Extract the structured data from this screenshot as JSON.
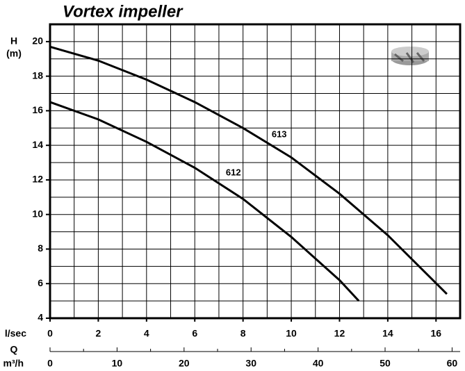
{
  "chart_data": {
    "type": "line",
    "title": "Vortex impeller",
    "ylabel": [
      "H",
      "(m)"
    ],
    "xlabel": "l/sec",
    "x2label": [
      "Q",
      "m³/h"
    ],
    "xlim": [
      0,
      17
    ],
    "ylim": [
      4,
      21
    ],
    "x2lim": [
      0,
      61.2
    ],
    "xticks": [
      0,
      2,
      4,
      6,
      8,
      10,
      12,
      14,
      16
    ],
    "yticks": [
      4,
      6,
      8,
      10,
      12,
      14,
      16,
      18,
      20
    ],
    "x2ticks": [
      0,
      10,
      20,
      30,
      40,
      50,
      60
    ],
    "x2minor": [
      5,
      15,
      25,
      35,
      45,
      55
    ],
    "xgrid": [
      1,
      2,
      3,
      4,
      5,
      6,
      7,
      8,
      9,
      10,
      11,
      12,
      13,
      14,
      15,
      16
    ],
    "ygrid": [
      5,
      6,
      7,
      8,
      9,
      10,
      11,
      12,
      13,
      14,
      15,
      16,
      17,
      18,
      19,
      20
    ],
    "grid": true,
    "series": [
      {
        "name": "613",
        "color": "#000000",
        "x": [
          0,
          2,
          4,
          6,
          8,
          10,
          12,
          14,
          16.45
        ],
        "values": [
          19.7,
          18.9,
          17.8,
          16.5,
          15.0,
          13.3,
          11.2,
          8.8,
          5.4
        ]
      },
      {
        "name": "612",
        "color": "#000000",
        "x": [
          0,
          2,
          4,
          6,
          8,
          10,
          12,
          12.8
        ],
        "values": [
          16.5,
          15.5,
          14.2,
          12.7,
          10.9,
          8.7,
          6.2,
          5.0
        ]
      }
    ]
  }
}
